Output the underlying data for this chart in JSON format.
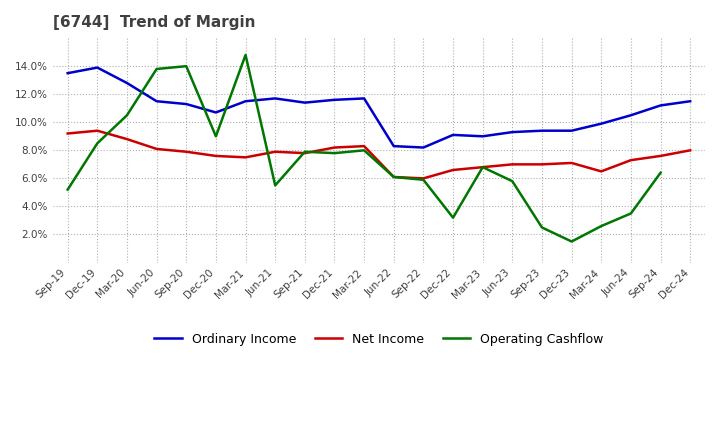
{
  "title": "[6744]  Trend of Margin",
  "title_color": "#404040",
  "background_color": "#ffffff",
  "grid_color": "#b0b0b0",
  "x_labels": [
    "Sep-19",
    "Dec-19",
    "Mar-20",
    "Jun-20",
    "Sep-20",
    "Dec-20",
    "Mar-21",
    "Jun-21",
    "Sep-21",
    "Dec-21",
    "Mar-22",
    "Jun-22",
    "Sep-22",
    "Dec-22",
    "Mar-23",
    "Jun-23",
    "Sep-23",
    "Dec-23",
    "Mar-24",
    "Jun-24",
    "Sep-24",
    "Dec-24"
  ],
  "ordinary_income": [
    13.5,
    13.9,
    12.8,
    11.5,
    11.3,
    10.7,
    11.5,
    11.7,
    11.4,
    11.6,
    11.7,
    8.3,
    8.2,
    9.1,
    9.0,
    9.3,
    9.4,
    9.4,
    9.9,
    10.5,
    11.2,
    11.5
  ],
  "net_income": [
    9.2,
    9.4,
    8.8,
    8.1,
    7.9,
    7.6,
    7.5,
    7.9,
    7.8,
    8.2,
    8.3,
    6.1,
    6.0,
    6.6,
    6.8,
    7.0,
    7.0,
    7.1,
    6.5,
    7.3,
    7.6,
    8.0
  ],
  "operating_cashflow": [
    5.2,
    8.5,
    10.5,
    13.8,
    14.0,
    9.0,
    14.8,
    5.5,
    7.9,
    7.8,
    8.0,
    6.1,
    5.9,
    3.2,
    6.8,
    5.8,
    2.5,
    1.5,
    2.6,
    3.5,
    6.4,
    null
  ],
  "line_color_oi": "#0000cc",
  "line_color_ni": "#cc0000",
  "line_color_ocf": "#007700",
  "ylim": [
    0.0,
    16.0
  ],
  "yticks": [
    2.0,
    4.0,
    6.0,
    8.0,
    10.0,
    12.0,
    14.0
  ]
}
